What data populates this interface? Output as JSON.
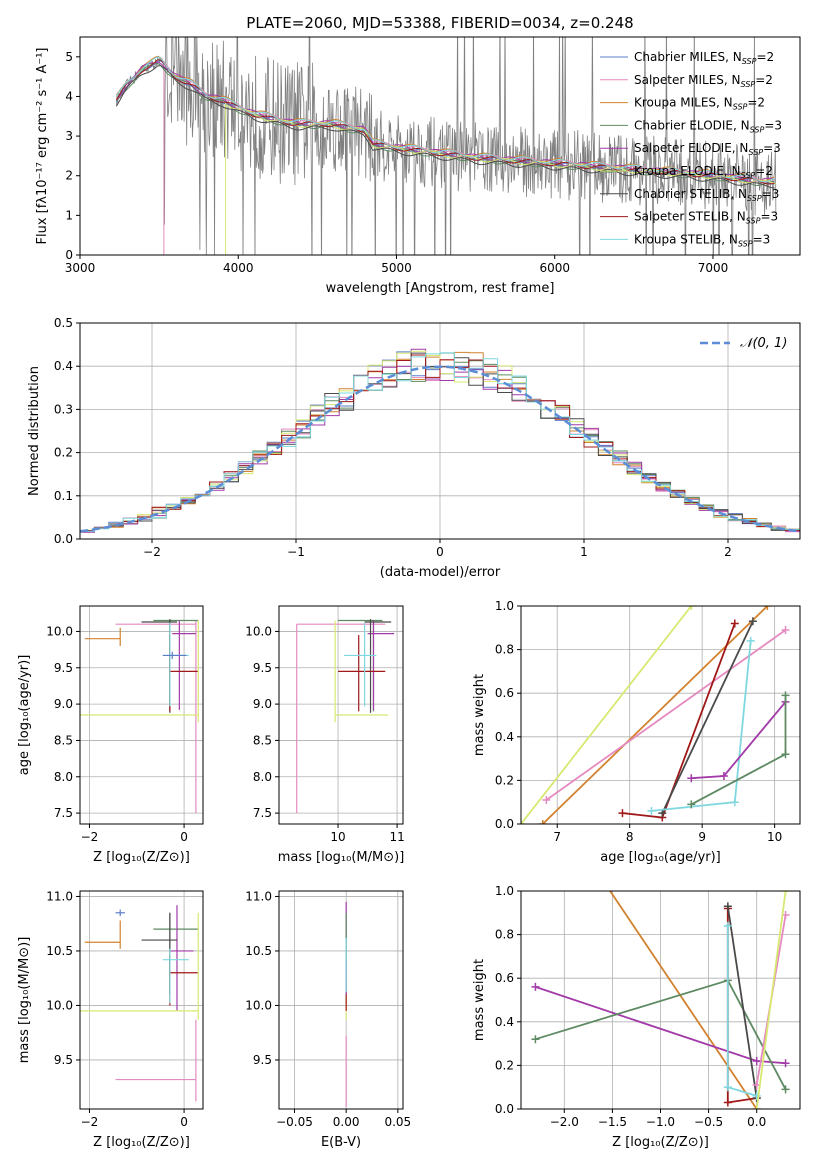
{
  "title": "PLATE=2060, MJD=53388, FIBERID=0034, z=0.248",
  "colors": {
    "chabrier_miles": "#5b7dc8",
    "salpeter_miles": "#e58ac0",
    "kroupa_miles": "#d2822f",
    "chabrier_elodie": "#5e8a63",
    "salpeter_elodie": "#a23aa8",
    "kroupa_elodie": "#d8e870",
    "chabrier_stelib": "#4a4a4a",
    "salpeter_stelib": "#a01818",
    "kroupa_stelib": "#7fd8e0",
    "data": "#808080",
    "normal": "#5b8ed6"
  },
  "chart_data": [
    {
      "id": "spectrum",
      "type": "line",
      "xlabel": "wavelength [Angstrom, rest frame]",
      "ylabel": "Flux [fλ10⁻¹⁷ erg cm⁻² s⁻¹ A⁻¹]",
      "xlim": [
        3000,
        7550
      ],
      "ylim": [
        0,
        5.5
      ],
      "xticks": [
        3000,
        4000,
        5000,
        6000,
        7000
      ],
      "yticks": [
        0,
        1,
        2,
        3,
        4,
        5
      ],
      "legend": "top-right",
      "series": [
        {
          "name": "Chabrier MILES, N_SSP=2",
          "color": "#5b7dc8"
        },
        {
          "name": "Salpeter MILES, N_SSP=2",
          "color": "#e58ac0"
        },
        {
          "name": "Kroupa MILES, N_SSP=2",
          "color": "#d2822f"
        },
        {
          "name": "Chabrier ELODIE, N_SSP=3",
          "color": "#5e8a63"
        },
        {
          "name": "Salpeter ELODIE, N_SSP=3",
          "color": "#a23aa8"
        },
        {
          "name": "Kroupa ELODIE, N_SSP=2",
          "color": "#d8e870"
        },
        {
          "name": "Chabrier STELIB, N_SSP=3",
          "color": "#4a4a4a"
        },
        {
          "name": "Salpeter STELIB, N_SSP=3",
          "color": "#a01818"
        },
        {
          "name": "Kroupa STELIB, N_SSP=3",
          "color": "#7fd8e0"
        }
      ],
      "model_continuum": {
        "x": [
          3230,
          3300,
          3400,
          3500,
          3600,
          3700,
          3800,
          3900,
          4000,
          4100,
          4200,
          4300,
          4400,
          4500,
          4600,
          4700,
          4800,
          4850,
          5000,
          5200,
          5500,
          6000,
          6500,
          7000,
          7300
        ],
        "y": [
          3.9,
          4.3,
          4.7,
          4.9,
          4.5,
          4.3,
          4.0,
          3.9,
          3.7,
          3.55,
          3.45,
          3.35,
          3.3,
          3.3,
          3.3,
          3.2,
          3.15,
          2.8,
          2.7,
          2.6,
          2.45,
          2.3,
          2.15,
          2.0,
          1.85
        ]
      }
    },
    {
      "id": "residuals",
      "type": "line",
      "xlabel": "(data-model)/error",
      "ylabel": "Normed distribution",
      "xlim": [
        -2.5,
        2.5
      ],
      "ylim": [
        0,
        0.5
      ],
      "xticks": [
        -2,
        -1,
        0,
        1,
        2
      ],
      "yticks": [
        0.0,
        0.1,
        0.2,
        0.3,
        0.4,
        0.5
      ],
      "legend": "top-right",
      "legend_label": "𝒩(0, 1)",
      "grid": true
    },
    {
      "id": "age-vs-Z",
      "type": "scatter",
      "xlabel": "Z [log₁₀(Z/Z⊙)]",
      "ylabel": "age  [log₁₀(age/yr)]",
      "xlim": [
        -2.2,
        0.4
      ],
      "ylim": [
        7.35,
        10.35
      ],
      "xticks": [
        -2,
        0
      ],
      "yticks": [
        7.5,
        8.0,
        8.5,
        9.0,
        9.5,
        10.0
      ],
      "grid": true,
      "points": [
        {
          "color": "#d2822f",
          "x": -1.35,
          "xerr": [
            0.75,
            0
          ],
          "y": 9.9,
          "yerr": [
            0.1,
            0.15
          ]
        },
        {
          "color": "#e58ac0",
          "x": 0.25,
          "xerr": [
            1.7,
            0
          ],
          "y": 10.1,
          "yerr": [
            2.6,
            0.05
          ]
        },
        {
          "color": "#5e8a63",
          "x": -0.3,
          "xerr": [
            0.35,
            0.6
          ],
          "y": 10.15,
          "yerr": [
            1.25,
            0
          ]
        },
        {
          "color": "#a23aa8",
          "x": -0.1,
          "xerr": [
            0.15,
            0.35
          ],
          "y": 9.97,
          "yerr": [
            1.05,
            0.18
          ]
        },
        {
          "color": "#4a4a4a",
          "x": -0.3,
          "xerr": [
            0.6,
            0.15
          ],
          "y": 10.13,
          "yerr": [
            1.25,
            0.04
          ]
        },
        {
          "color": "#a01818",
          "x": -0.3,
          "xerr": [
            0,
            0.6
          ],
          "y": 9.45,
          "yerr": [
            0.55,
            0.5
          ]
        },
        {
          "color": "#7fd8e0",
          "x": -0.3,
          "xerr": [
            0.15,
            0.4
          ],
          "y": 9.67,
          "yerr": [
            0.7,
            0.45
          ]
        },
        {
          "color": "#d8e870",
          "x": 0.3,
          "xerr": [
            2.5,
            0
          ],
          "y": 8.85,
          "yerr": [
            0.1,
            1.3
          ]
        },
        {
          "color": "#5b7dc8",
          "x": -0.25,
          "xerr": [
            0.2,
            0.3
          ],
          "y": 9.67,
          "yerr": [
            0.05,
            0.05
          ]
        }
      ]
    },
    {
      "id": "age-vs-mass",
      "type": "scatter",
      "xlabel": "mass [log₁₀(M/M⊙)]",
      "xlim": [
        9.0,
        11.1
      ],
      "ylim": [
        7.35,
        10.35
      ],
      "xticks": [
        10,
        11
      ],
      "yticks": [
        7.5,
        8.0,
        8.5,
        9.0,
        9.5,
        10.0
      ],
      "grid": true,
      "points": [
        {
          "color": "#e58ac0",
          "x": 9.3,
          "xerr": [
            0,
            1.5
          ],
          "y": 10.1,
          "yerr": [
            2.6,
            0
          ]
        },
        {
          "color": "#d8e870",
          "x": 9.95,
          "xerr": [
            0,
            0.9
          ],
          "y": 8.85,
          "yerr": [
            0.1,
            1.3
          ]
        },
        {
          "color": "#5e8a63",
          "x": 10.6,
          "xerr": [
            0.6,
            0.15
          ],
          "y": 10.15,
          "yerr": [
            1.25,
            0
          ]
        },
        {
          "color": "#a23aa8",
          "x": 10.6,
          "xerr": [
            0.1,
            0.35
          ],
          "y": 9.97,
          "yerr": [
            1.05,
            0.18
          ]
        },
        {
          "color": "#4a4a4a",
          "x": 10.55,
          "xerr": [
            0.1,
            0.35
          ],
          "y": 10.13,
          "yerr": [
            1.25,
            0.04
          ]
        },
        {
          "color": "#a01818",
          "x": 10.35,
          "xerr": [
            0.35,
            0.45
          ],
          "y": 9.45,
          "yerr": [
            0.55,
            0.5
          ]
        },
        {
          "color": "#7fd8e0",
          "x": 10.45,
          "xerr": [
            0.35,
            0.2
          ],
          "y": 9.67,
          "yerr": [
            0.7,
            0.45
          ]
        }
      ]
    },
    {
      "id": "weight-vs-age",
      "type": "line",
      "xlabel": "age  [log₁₀(age/yr)]",
      "ylabel": "mass weight",
      "xlim": [
        6.5,
        10.35
      ],
      "ylim": [
        0,
        1.0
      ],
      "xticks": [
        7,
        8,
        9,
        10
      ],
      "yticks": [
        0.0,
        0.2,
        0.4,
        0.6,
        0.8,
        1.0
      ],
      "grid": true,
      "series": [
        {
          "color": "#d8e870",
          "x": [
            6.5,
            8.85
          ],
          "y": [
            0.0,
            1.0
          ]
        },
        {
          "color": "#d2822f",
          "x": [
            6.8,
            9.9
          ],
          "y": [
            0.0,
            1.0
          ]
        },
        {
          "color": "#e58ac0",
          "x": [
            6.85,
            10.15
          ],
          "y": [
            0.11,
            0.89
          ]
        },
        {
          "color": "#a01818",
          "x": [
            7.9,
            8.45,
            9.45
          ],
          "y": [
            0.05,
            0.03,
            0.92
          ]
        },
        {
          "color": "#4a4a4a",
          "x": [
            8.45,
            9.7
          ],
          "y": [
            0.05,
            0.93
          ]
        },
        {
          "color": "#7fd8e0",
          "x": [
            8.3,
            9.45,
            9.67
          ],
          "y": [
            0.06,
            0.1,
            0.84
          ]
        },
        {
          "color": "#a23aa8",
          "x": [
            8.85,
            9.3,
            10.15
          ],
          "y": [
            0.21,
            0.22,
            0.56
          ]
        },
        {
          "color": "#5e8a63",
          "x": [
            8.85,
            10.15,
            10.15
          ],
          "y": [
            0.09,
            0.32,
            0.59
          ]
        }
      ]
    },
    {
      "id": "mass-vs-Z",
      "type": "scatter",
      "xlabel": "Z [log₁₀(Z/Z⊙)]",
      "ylabel": "mass [log₁₀(M/M⊙)]",
      "xlim": [
        -2.2,
        0.4
      ],
      "ylim": [
        9.05,
        11.05
      ],
      "xticks": [
        -2,
        0
      ],
      "yticks": [
        9.5,
        10.0,
        10.5,
        11.0
      ],
      "grid": true,
      "points": [
        {
          "color": "#d2822f",
          "x": -1.35,
          "xerr": [
            0.75,
            0
          ],
          "y": 10.58,
          "yerr": [
            0.06,
            0.2
          ]
        },
        {
          "color": "#e58ac0",
          "x": 0.25,
          "xerr": [
            1.7,
            0
          ],
          "y": 9.32,
          "yerr": [
            0.2,
            0.55
          ]
        },
        {
          "color": "#5e8a63",
          "x": -0.3,
          "xerr": [
            0.35,
            0.6
          ],
          "y": 10.7,
          "yerr": [
            0.6,
            0.15
          ]
        },
        {
          "color": "#a23aa8",
          "x": -0.15,
          "xerr": [
            0.15,
            0.35
          ],
          "y": 10.5,
          "yerr": [
            0.55,
            0.42
          ]
        },
        {
          "color": "#4a4a4a",
          "x": -0.3,
          "xerr": [
            0.6,
            0.15
          ],
          "y": 10.6,
          "yerr": [
            0.5,
            0.25
          ]
        },
        {
          "color": "#a01818",
          "x": -0.3,
          "xerr": [
            0,
            0.6
          ],
          "y": 10.3,
          "yerr": [
            0.3,
            0.15
          ]
        },
        {
          "color": "#7fd8e0",
          "x": -0.3,
          "xerr": [
            0.15,
            0.4
          ],
          "y": 10.42,
          "yerr": [
            0.4,
            0.1
          ]
        },
        {
          "color": "#d8e870",
          "x": 0.3,
          "xerr": [
            2.5,
            0
          ],
          "y": 9.95,
          "yerr": [
            0.08,
            0.9
          ]
        },
        {
          "color": "#5b7dc8",
          "x": -1.35,
          "xerr": [
            0.1,
            0.1
          ],
          "y": 10.85,
          "yerr": [
            0.03,
            0.03
          ]
        }
      ]
    },
    {
      "id": "mass-vs-EBV",
      "type": "scatter",
      "xlabel": "E(B-V)",
      "xlim": [
        -0.065,
        0.055
      ],
      "ylim": [
        9.05,
        11.05
      ],
      "xticks": [
        -0.05,
        0.0,
        0.05
      ],
      "xticklabels": [
        "−0.05",
        "0.00",
        "0.05"
      ],
      "yticks": [
        9.5,
        10.0,
        10.5,
        11.0
      ],
      "grid": true,
      "points": [
        {
          "color": "#e58ac0",
          "x": 0.0,
          "xerr": [
            0,
            0
          ],
          "y": 9.32,
          "yerr": [
            0.25,
            0.4
          ]
        },
        {
          "color": "#d8e870",
          "x": 0.0,
          "xerr": [
            0,
            0
          ],
          "y": 9.95,
          "yerr": [
            0.08,
            0.3
          ]
        },
        {
          "color": "#a01818",
          "x": 0.0,
          "xerr": [
            0,
            0
          ],
          "y": 10.3,
          "yerr": [
            0.35,
            0.1
          ]
        },
        {
          "color": "#a23aa8",
          "x": 0.0,
          "xerr": [
            0,
            0
          ],
          "y": 10.5,
          "yerr": [
            0.4,
            0.45
          ]
        },
        {
          "color": "#5e8a63",
          "x": 0.0,
          "xerr": [
            0,
            0
          ],
          "y": 10.7,
          "yerr": [
            0.3,
            0.15
          ]
        },
        {
          "color": "#7fd8e0",
          "x": 0.0,
          "xerr": [
            0,
            0
          ],
          "y": 10.42,
          "yerr": [
            0.3,
            0.2
          ]
        }
      ]
    },
    {
      "id": "weight-vs-Z",
      "type": "line",
      "xlabel": "Z [log₁₀(Z/Z⊙)]",
      "ylabel": "mass weight",
      "xlim": [
        -2.45,
        0.45
      ],
      "ylim": [
        0,
        1.0
      ],
      "xticks": [
        -2.0,
        -1.5,
        -1.0,
        -0.5,
        0.0
      ],
      "xticklabels": [
        "−2.0",
        "−1.5",
        "−1.0",
        "−0.5",
        "0.0"
      ],
      "yticks": [
        0.0,
        0.2,
        0.4,
        0.6,
        0.8,
        1.0
      ],
      "grid": true,
      "series": [
        {
          "color": "#d2822f",
          "x": [
            -1.6,
            0.0
          ],
          "y": [
            1.05,
            0.0
          ]
        },
        {
          "color": "#a23aa8",
          "x": [
            -2.3,
            0.0,
            0.3
          ],
          "y": [
            0.56,
            0.22,
            0.21
          ]
        },
        {
          "color": "#5e8a63",
          "x": [
            -2.3,
            -0.3,
            0.3
          ],
          "y": [
            0.32,
            0.59,
            0.09
          ]
        },
        {
          "color": "#a01818",
          "x": [
            -0.3,
            -0.3,
            0.0
          ],
          "y": [
            0.92,
            0.03,
            0.05
          ]
        },
        {
          "color": "#4a4a4a",
          "x": [
            -0.3,
            0.0
          ],
          "y": [
            0.93,
            0.05
          ]
        },
        {
          "color": "#7fd8e0",
          "x": [
            -0.3,
            -0.3,
            0.0
          ],
          "y": [
            0.84,
            0.1,
            0.06
          ]
        },
        {
          "color": "#e58ac0",
          "x": [
            0.0,
            0.3
          ],
          "y": [
            0.11,
            0.89
          ]
        },
        {
          "color": "#d8e870",
          "x": [
            0.0,
            0.3
          ],
          "y": [
            0.0,
            1.0
          ]
        }
      ]
    }
  ]
}
